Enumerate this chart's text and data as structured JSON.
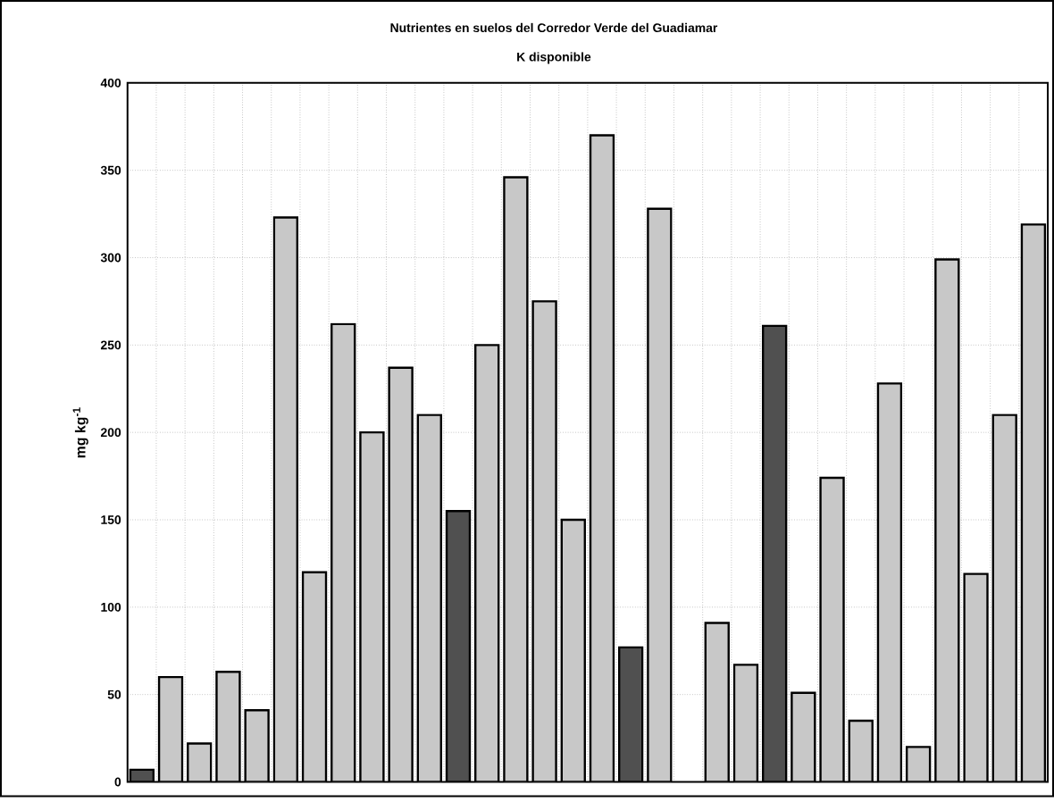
{
  "chart_data": {
    "type": "bar",
    "title": "Nutrientes en suelos del Corredor Verde del Guadiamar",
    "subtitle": "K disponible",
    "ylabel": "mg kg$^{-1}$",
    "categories": [
      null,
      null,
      null,
      null,
      null,
      null,
      null,
      null,
      null,
      null,
      null,
      null,
      null,
      null,
      null,
      null,
      null,
      null,
      null,
      null,
      null,
      null,
      null,
      null,
      null,
      null,
      null,
      null,
      null,
      null,
      null,
      null
    ],
    "values": [
      7,
      60,
      22,
      63,
      41,
      323,
      120,
      262,
      200,
      237,
      210,
      155,
      250,
      346,
      275,
      150,
      370,
      77,
      328,
      null,
      91,
      67,
      261,
      51,
      174,
      35,
      228,
      20,
      299,
      119,
      210,
      319
    ],
    "colors": [
      "#505050",
      "#c8c8c8",
      "#c8c8c8",
      "#c8c8c8",
      "#c8c8c8",
      "#c8c8c8",
      "#c8c8c8",
      "#c8c8c8",
      "#c8c8c8",
      "#c8c8c8",
      "#c8c8c8",
      "#505050",
      "#c8c8c8",
      "#c8c8c8",
      "#c8c8c8",
      "#c8c8c8",
      "#c8c8c8",
      "#505050",
      "#c8c8c8",
      "#c8c8c8",
      "#c8c8c8",
      "#c8c8c8",
      "#505050",
      "#c8c8c8",
      "#c8c8c8",
      "#c8c8c8",
      "#c8c8c8",
      "#c8c8c8",
      "#c8c8c8",
      "#c8c8c8",
      "#c8c8c8",
      "#c8c8c8"
    ],
    "ylim": [
      0,
      400
    ],
    "yticks": [
      0,
      50,
      100,
      150,
      200,
      250,
      300,
      350,
      400
    ],
    "grid": true
  }
}
